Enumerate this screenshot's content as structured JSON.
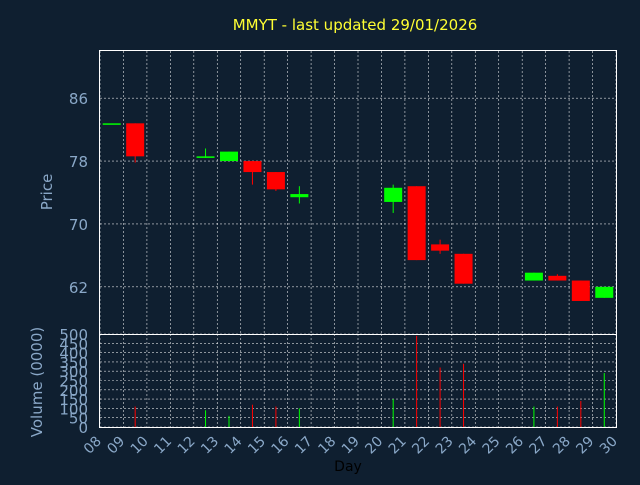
{
  "chart_data": {
    "type": "candlestick",
    "title": "MMYT - last updated 29/01/2026",
    "xlabel": "Day",
    "ylabel_price": "Price",
    "ylabel_volume": "Volume (0000)",
    "x_ticks": [
      "08",
      "09",
      "10",
      "11",
      "12",
      "13",
      "14",
      "15",
      "16",
      "17",
      "18",
      "19",
      "20",
      "21",
      "22",
      "23",
      "24",
      "25",
      "26",
      "27",
      "28",
      "29",
      "30"
    ],
    "price_ticks": [
      62,
      70,
      78,
      86
    ],
    "price_ylim": [
      56,
      92
    ],
    "volume_ticks": [
      0,
      50,
      100,
      150,
      200,
      250,
      300,
      350,
      400,
      450,
      500
    ],
    "volume_ylim": [
      0,
      500
    ],
    "grid": true,
    "colors": {
      "up": "#00ff00",
      "down": "#ff0000",
      "background": "#0f1f30",
      "text": "#8aa8c8",
      "title": "#ffff33"
    },
    "candles": [
      {
        "day": 8,
        "open": 82.8,
        "high": 82.8,
        "low": 82.8,
        "close": 82.8,
        "volume": 0
      },
      {
        "day": 9,
        "open": 82.8,
        "high": 82.8,
        "low": 77.8,
        "close": 78.6,
        "volume": 110
      },
      {
        "day": 12,
        "open": 78.4,
        "high": 79.6,
        "low": 78.4,
        "close": 78.6,
        "volume": 90
      },
      {
        "day": 13,
        "open": 78.0,
        "high": 79.2,
        "low": 78.0,
        "close": 79.2,
        "volume": 60
      },
      {
        "day": 14,
        "open": 78.0,
        "high": 78.0,
        "low": 75.0,
        "close": 76.6,
        "volume": 120
      },
      {
        "day": 15,
        "open": 76.6,
        "high": 76.6,
        "low": 74.2,
        "close": 74.4,
        "volume": 110
      },
      {
        "day": 16,
        "open": 73.4,
        "high": 74.8,
        "low": 72.6,
        "close": 73.8,
        "volume": 100
      },
      {
        "day": 20,
        "open": 72.8,
        "high": 75.0,
        "low": 71.4,
        "close": 74.6,
        "volume": 150
      },
      {
        "day": 21,
        "open": 74.8,
        "high": 74.8,
        "low": 65.4,
        "close": 65.4,
        "volume": 490
      },
      {
        "day": 22,
        "open": 67.4,
        "high": 68.0,
        "low": 66.2,
        "close": 66.6,
        "volume": 320
      },
      {
        "day": 23,
        "open": 66.2,
        "high": 66.2,
        "low": 62.4,
        "close": 62.4,
        "volume": 340
      },
      {
        "day": 26,
        "open": 62.8,
        "high": 63.8,
        "low": 62.8,
        "close": 63.8,
        "volume": 110
      },
      {
        "day": 27,
        "open": 63.4,
        "high": 63.6,
        "low": 62.8,
        "close": 62.8,
        "volume": 110
      },
      {
        "day": 28,
        "open": 62.8,
        "high": 62.8,
        "low": 60.2,
        "close": 60.2,
        "volume": 140
      },
      {
        "day": 29,
        "open": 60.6,
        "high": 62.0,
        "low": 60.6,
        "close": 62.0,
        "volume": 290
      }
    ]
  }
}
